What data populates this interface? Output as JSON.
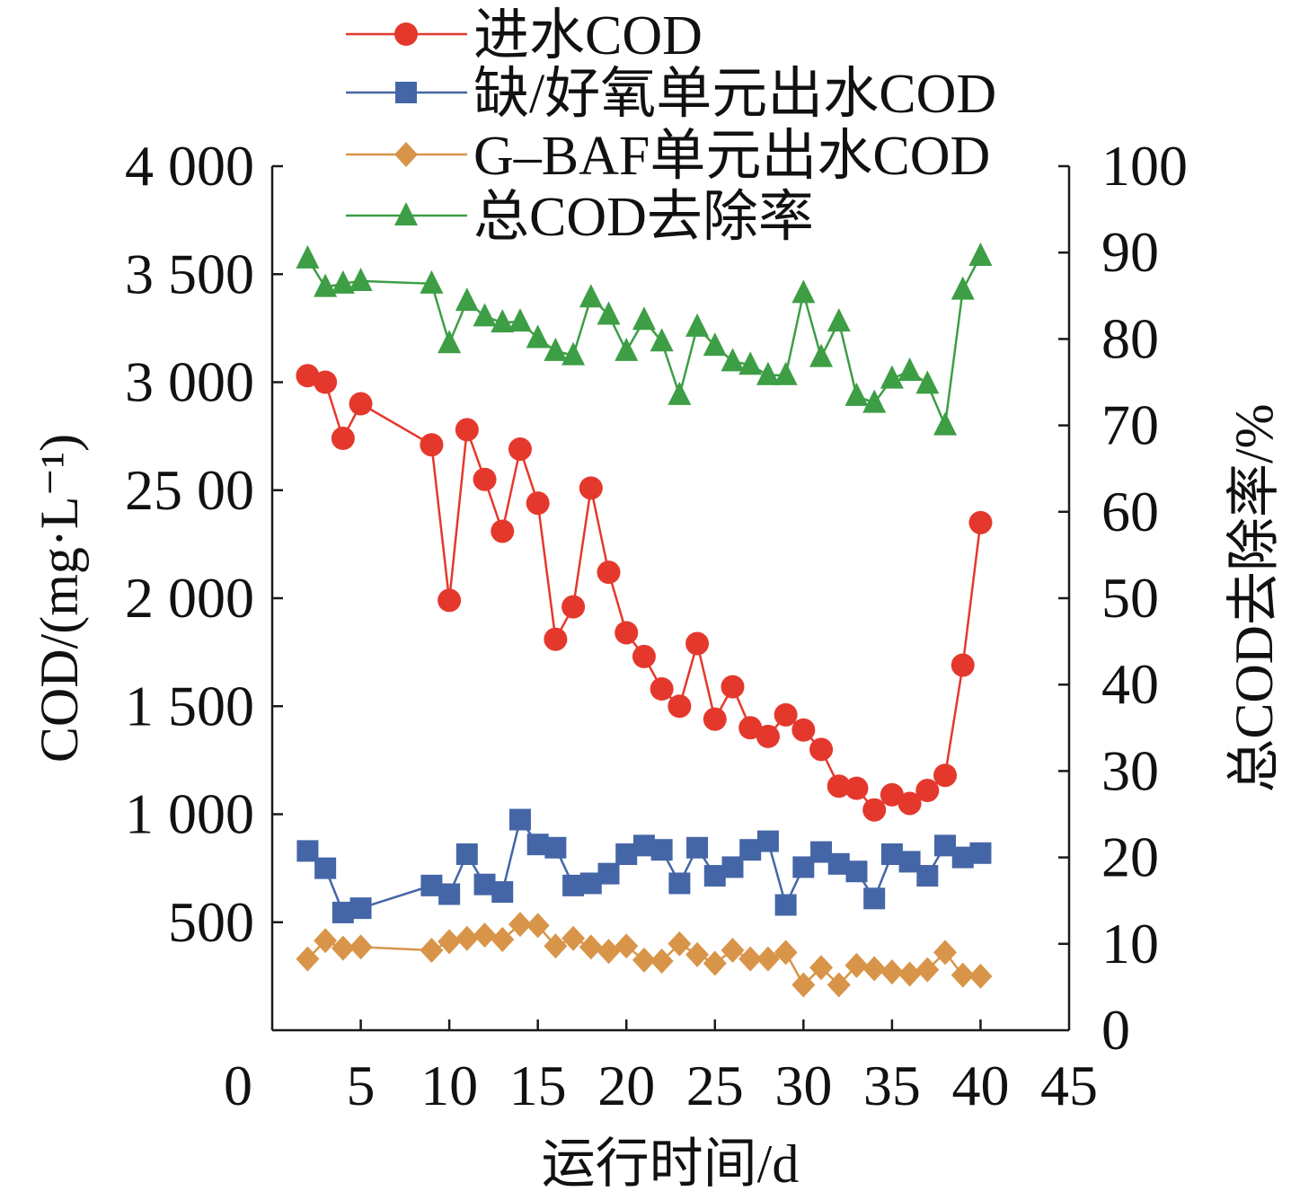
{
  "chart_data": {
    "type": "line",
    "xlabel": "运行时间/d",
    "ylabel": "COD/(mg·L⁻¹)",
    "y2label": "总COD去除率/%",
    "xlim": [
      0,
      45
    ],
    "ylim": [
      0,
      4000
    ],
    "y2lim": [
      0,
      100
    ],
    "grid": false,
    "legend": "top-left",
    "x_ticks": {
      "values": [
        0,
        5,
        10,
        15,
        20,
        25,
        30,
        35,
        40,
        45
      ],
      "labels": [
        "0",
        "5",
        "10",
        "15",
        "20",
        "25",
        "30",
        "35",
        "40",
        "45"
      ]
    },
    "y_ticks": {
      "values": [
        500,
        1000,
        1500,
        2000,
        2500,
        3000,
        3500,
        4000
      ],
      "labels": [
        "500",
        "1 000",
        "1 500",
        "2 000",
        "25 00",
        "3 000",
        "3 500",
        "4 000"
      ]
    },
    "y2_ticks": {
      "values": [
        0,
        10,
        20,
        30,
        40,
        50,
        60,
        70,
        80,
        90,
        100
      ],
      "labels": [
        "0",
        "10",
        "20",
        "30",
        "40",
        "50",
        "60",
        "70",
        "80",
        "90",
        "100"
      ]
    },
    "x": [
      2,
      3,
      4,
      5,
      9,
      10,
      11,
      12,
      13,
      14,
      15,
      16,
      17,
      18,
      19,
      20,
      21,
      22,
      23,
      24,
      25,
      26,
      27,
      28,
      29,
      30,
      31,
      32,
      33,
      34,
      35,
      36,
      37,
      38,
      39,
      40
    ],
    "series": [
      {
        "name": "进水COD",
        "axis": "left",
        "marker": "circle",
        "color": "#e5382d",
        "values": [
          3030,
          3000,
          2740,
          2900,
          2710,
          1990,
          2780,
          2550,
          2310,
          2690,
          2440,
          1810,
          1960,
          2510,
          2120,
          1840,
          1730,
          1580,
          1500,
          1790,
          1440,
          1590,
          1400,
          1360,
          1460,
          1390,
          1300,
          1130,
          1120,
          1020,
          1090,
          1050,
          1110,
          1180,
          1690,
          2350
        ]
      },
      {
        "name": "缺/好氧单元出水COD",
        "axis": "left",
        "marker": "square",
        "color": "#4566a6",
        "values": [
          830,
          750,
          545,
          565,
          670,
          630,
          815,
          675,
          640,
          975,
          860,
          845,
          670,
          680,
          725,
          815,
          855,
          835,
          680,
          845,
          715,
          755,
          835,
          875,
          580,
          755,
          825,
          770,
          735,
          610,
          815,
          780,
          715,
          855,
          800,
          820
        ]
      },
      {
        "name": "G–BAF单元出水COD",
        "axis": "left",
        "marker": "diamond",
        "color": "#d8954a",
        "values": [
          330,
          415,
          380,
          385,
          370,
          410,
          425,
          440,
          420,
          490,
          485,
          390,
          425,
          385,
          365,
          390,
          325,
          320,
          400,
          350,
          310,
          370,
          330,
          330,
          360,
          210,
          290,
          210,
          300,
          285,
          270,
          260,
          280,
          360,
          255,
          250
        ]
      },
      {
        "name": "总COD去除率",
        "axis": "right",
        "marker": "triangle",
        "color": "#3d9e45",
        "values": [
          89.3,
          86.0,
          86.4,
          86.7,
          86.4,
          79.5,
          84.4,
          82.6,
          81.9,
          82.0,
          80.1,
          78.6,
          78.1,
          84.8,
          82.8,
          78.6,
          82.2,
          79.7,
          73.5,
          81.4,
          79.2,
          77.4,
          77.0,
          75.8,
          75.8,
          85.3,
          77.9,
          82.0,
          73.4,
          72.6,
          75.4,
          76.3,
          74.8,
          70.0,
          85.7,
          89.6
        ]
      }
    ]
  }
}
